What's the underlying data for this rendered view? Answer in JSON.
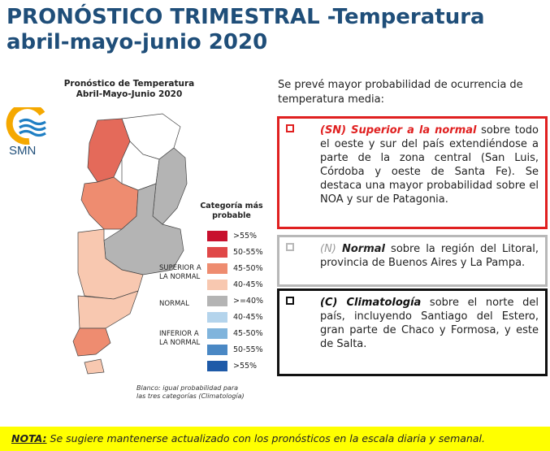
{
  "title": {
    "line1": "PRONÓSTICO TRIMESTRAL -Temperatura",
    "line2": "abril-mayo-junio 2020"
  },
  "map": {
    "title_line1": "Pronóstico de Temperatura",
    "title_line2": "Abril-Mayo-Junio 2020",
    "logo_text": "SMN",
    "logo_icon": "smn-sun-waves-icon",
    "legend_title_line1": "Categoría más",
    "legend_title_line2": "probable",
    "legend": [
      {
        "label": ">55%",
        "color": "#c8102e"
      },
      {
        "label": "50-55%",
        "color": "#e04848"
      },
      {
        "label": "45-50%",
        "color": "#ee8c70"
      },
      {
        "label": "40-45%",
        "color": "#f8c8b0"
      },
      {
        "label": ">=40%",
        "color": "#b4b4b4"
      },
      {
        "label": "40-45%",
        "color": "#b4d4ec"
      },
      {
        "label": "45-50%",
        "color": "#80b4dc"
      },
      {
        "label": "50-55%",
        "color": "#4a88c4"
      },
      {
        "label": ">55%",
        "color": "#1e5aa8"
      }
    ],
    "group_superior_line1": "SUPERIOR A",
    "group_superior_line2": "LA NORMAL",
    "group_normal": "NORMAL",
    "group_inferior_line1": "INFERIOR A",
    "group_inferior_line2": "LA NORMAL",
    "footnote_line1": "Blanco: igual probabilidad para",
    "footnote_line2": "las tres categorías (Climatología)"
  },
  "intro": "Se prevé mayor probabilidad de ocurrencia de temperatura media:",
  "boxes": {
    "sn": {
      "label": "(SN) Superior a la normal",
      "text": " sobre todo el oeste y sur del país extendiéndose a parte de la zona central (San Luis, Córdoba y oeste de Santa Fe). Se destaca una mayor probabilidad sobre el NOA y sur de Patagonia.",
      "color": "#e02020"
    },
    "n": {
      "label_prefix": "(N) ",
      "label": "Normal",
      "text": " sobre la región del Litoral, provincia de Buenos Aires y La Pampa.",
      "color": "#b8b8b8"
    },
    "c": {
      "label": "(C) Climatología",
      "text": " sobre el norte del país, incluyendo Santiago del Estero, gran parte de Chaco y Formosa, y este de Salta.",
      "color": "#111111"
    }
  },
  "nota": {
    "label": "NOTA:",
    "text": " Se sugiere mantenerse actualizado con los pronósticos en la escala diaria y semanal."
  }
}
